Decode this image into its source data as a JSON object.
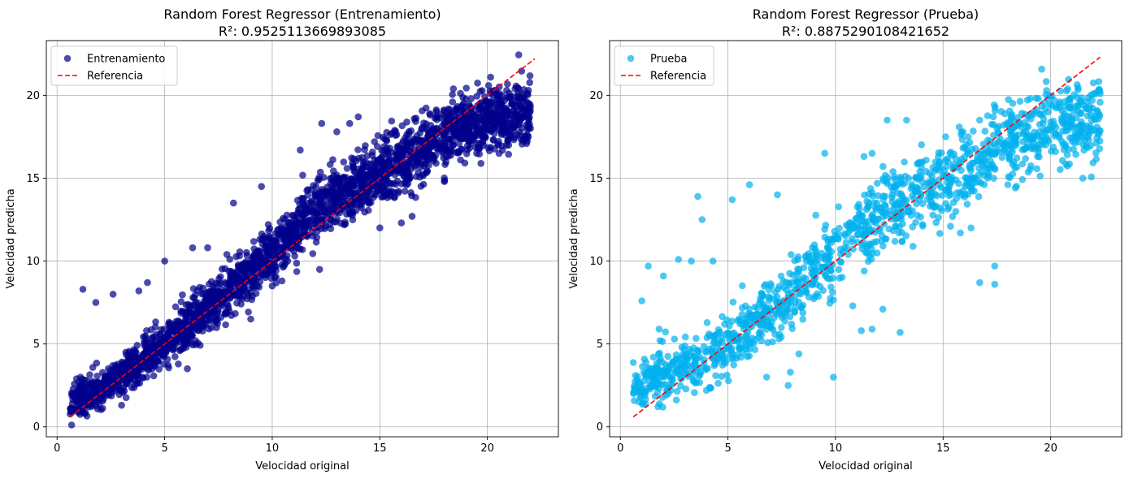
{
  "chart_data": [
    {
      "type": "scatter",
      "title": "Random Forest Regressor (Entrenamiento)",
      "subtitle": "R²: 0.9525113669893085",
      "xlabel": "Velocidad original",
      "ylabel": "Velocidad predicha",
      "xlim": [
        -0.5,
        23.3
      ],
      "ylim": [
        -0.6,
        23.3
      ],
      "xticks": [
        0,
        5,
        10,
        15,
        20
      ],
      "yticks": [
        0,
        5,
        10,
        15,
        20
      ],
      "grid": true,
      "legend_position": "top-left",
      "series": [
        {
          "name": "Entrenamiento",
          "kind": "scatter",
          "color": "#00008b",
          "alpha": 0.7,
          "trend": [
            [
              0.6,
              1.5
            ],
            [
              2,
              2.2
            ],
            [
              5,
              5.0
            ],
            [
              8,
              8.2
            ],
            [
              10,
              10.6
            ],
            [
              12,
              13.0
            ],
            [
              15,
              15.3
            ],
            [
              18,
              17.6
            ],
            [
              20,
              18.6
            ],
            [
              22,
              19.0
            ]
          ],
          "n_points": 2600,
          "spread": 0.9,
          "outliers": [
            [
              1.2,
              8.3
            ],
            [
              1.8,
              7.5
            ],
            [
              2.6,
              8.0
            ],
            [
              3.8,
              8.2
            ],
            [
              4.2,
              8.7
            ],
            [
              5.0,
              10.0
            ],
            [
              6.3,
              10.8
            ],
            [
              7.0,
              10.8
            ],
            [
              8.2,
              13.5
            ],
            [
              9.5,
              14.5
            ],
            [
              11.3,
              16.7
            ],
            [
              12.3,
              18.3
            ],
            [
              13.0,
              17.8
            ],
            [
              13.6,
              18.3
            ],
            [
              14.0,
              18.7
            ],
            [
              3.0,
              1.3
            ],
            [
              6.0,
              4.8
            ],
            [
              10.0,
              8.5
            ],
            [
              12.2,
              9.5
            ],
            [
              15.0,
              12.0
            ],
            [
              16.0,
              12.3
            ],
            [
              16.5,
              12.7
            ],
            [
              18.0,
              14.8
            ],
            [
              19.5,
              16.5
            ],
            [
              20.5,
              17.0
            ],
            [
              21.5,
              17.6
            ],
            [
              9.0,
              6.5
            ],
            [
              9.2,
              9.0
            ]
          ],
          "seed": 7
        },
        {
          "name": "Referencia",
          "kind": "line",
          "color": "#ff0000",
          "dash": true,
          "points": [
            [
              0.6,
              0.6
            ],
            [
              22.2,
              22.2
            ]
          ]
        }
      ]
    },
    {
      "type": "scatter",
      "title": "Random Forest Regressor (Prueba)",
      "subtitle": "R²: 0.8875290108421652",
      "xlabel": "Velocidad original",
      "ylabel": "Velocidad predicha",
      "xlim": [
        -0.5,
        23.3
      ],
      "ylim": [
        -0.6,
        23.3
      ],
      "xticks": [
        0,
        5,
        10,
        15,
        20
      ],
      "yticks": [
        0,
        5,
        10,
        15,
        20
      ],
      "grid": true,
      "legend_position": "top-left",
      "series": [
        {
          "name": "Prueba",
          "kind": "scatter",
          "color": "#00b0ee",
          "alpha": 0.7,
          "trend": [
            [
              0.6,
              2.5
            ],
            [
              2,
              3.0
            ],
            [
              5,
              5.0
            ],
            [
              8,
              8.2
            ],
            [
              10,
              10.5
            ],
            [
              12,
              12.8
            ],
            [
              15,
              14.8
            ],
            [
              18,
              17.0
            ],
            [
              20,
              18.3
            ],
            [
              22.3,
              18.7
            ]
          ],
          "n_points": 1400,
          "spread": 1.2,
          "outliers": [
            [
              1.0,
              7.6
            ],
            [
              1.3,
              9.7
            ],
            [
              2.0,
              9.1
            ],
            [
              2.7,
              10.1
            ],
            [
              3.3,
              10.0
            ],
            [
              3.6,
              13.9
            ],
            [
              3.8,
              12.5
            ],
            [
              4.3,
              10.0
            ],
            [
              5.2,
              13.7
            ],
            [
              6.0,
              14.6
            ],
            [
              7.3,
              14.0
            ],
            [
              9.5,
              16.5
            ],
            [
              11.7,
              16.5
            ],
            [
              12.4,
              18.5
            ],
            [
              13.3,
              18.5
            ],
            [
              16.7,
              18.5
            ],
            [
              1.8,
              5.9
            ],
            [
              4.0,
              2.2
            ],
            [
              6.8,
              3.0
            ],
            [
              7.8,
              2.5
            ],
            [
              7.9,
              3.3
            ],
            [
              8.3,
              4.4
            ],
            [
              9.9,
              3.0
            ],
            [
              11.2,
              5.8
            ],
            [
              11.7,
              5.9
            ],
            [
              13.0,
              5.7
            ],
            [
              16.7,
              8.7
            ],
            [
              17.4,
              8.6
            ],
            [
              17.4,
              9.7
            ],
            [
              15.8,
              11.7
            ],
            [
              16.3,
              12.0
            ],
            [
              10.8,
              7.3
            ],
            [
              12.2,
              7.1
            ]
          ],
          "seed": 11
        },
        {
          "name": "Referencia",
          "kind": "line",
          "color": "#ff0000",
          "dash": true,
          "points": [
            [
              0.6,
              0.6
            ],
            [
              22.3,
              22.3
            ]
          ]
        }
      ]
    }
  ]
}
